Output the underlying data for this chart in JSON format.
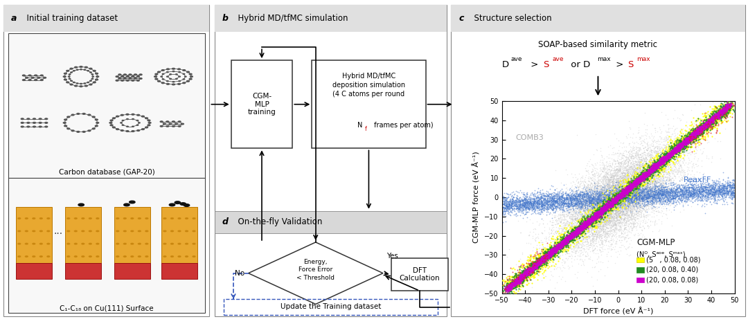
{
  "fig_width": 10.8,
  "fig_height": 4.71,
  "bg_color": "#ffffff",
  "scatter_xlabel": "DFT force (eV Å⁻¹)",
  "scatter_ylabel": "CGM-MLP force (eV Å⁻¹)",
  "soap_text": "SOAP-based similarity metric",
  "comb3_label": "COMB3",
  "reaxff_label": "ReaxFF",
  "cgmmlp_label": "CGM-MLP",
  "carbon_db_label": "Carbon database (GAP-20)",
  "c1c18_label": "C₁-C₁₈ on Cu(111) Surface",
  "update_label": "Update the Training dataset",
  "panel_border_color": "#888888",
  "header_bg": "#e0e0e0",
  "box_bg": "#ffffff",
  "box_border": "#333333",
  "nf_color": "#cc0000",
  "blue_dash": "#3355bb"
}
